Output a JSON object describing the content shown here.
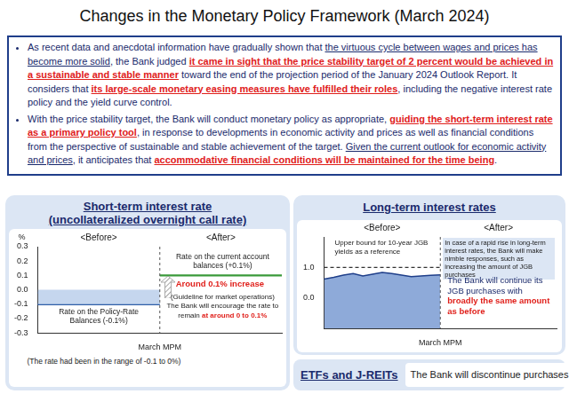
{
  "title": "Changes in the Monetary Policy Framework (March 2024)",
  "summary": {
    "bullets": [
      [
        {
          "text": "As recent data and anecdotal information have gradually shown that ",
          "style": "plain"
        },
        {
          "text": "the virtuous cycle between wages and prices has become more solid",
          "style": "underline"
        },
        {
          "text": ", the Bank judged ",
          "style": "plain"
        },
        {
          "text": "it came in sight that the price stability target of 2 percent would be achieved in a sustainable and stable manner",
          "style": "underline_red_bold"
        },
        {
          "text": " toward the end of the projection period of the January 2024 Outlook Report. It considers that ",
          "style": "plain"
        },
        {
          "text": "its large-scale monetary easing measures have fulfilled their roles",
          "style": "underline_red_bold"
        },
        {
          "text": ", including the negative interest rate policy and the yield curve control.",
          "style": "plain"
        }
      ],
      [
        {
          "text": "With the price stability target, the Bank will conduct monetary policy as appropriate, ",
          "style": "plain"
        },
        {
          "text": "guiding the short-term interest rate as a primary policy tool",
          "style": "underline_red_bold"
        },
        {
          "text": ", in response to developments in economic activity and prices as well as financial conditions from the perspective of sustainable and stable achievement of the target. ",
          "style": "plain"
        },
        {
          "text": "Given the current outlook for economic activity and prices",
          "style": "underline"
        },
        {
          "text": ", it anticipates that ",
          "style": "plain"
        },
        {
          "text": "accommodative financial conditions will be maintained for the time being",
          "style": "underline_red_bold"
        },
        {
          "text": ".",
          "style": "plain"
        }
      ]
    ]
  },
  "chart_data": [
    {
      "type": "line",
      "title": "Short-term interest rate",
      "subtitle": "(uncollateralized overnight call rate)",
      "ylabel": "%",
      "categories": [
        null,
        null,
        null,
        null,
        null,
        null,
        null,
        null,
        null,
        null,
        null,
        null,
        "March MPM",
        null,
        null,
        null,
        null,
        null,
        null,
        null,
        null,
        null,
        null,
        null,
        null
      ],
      "series": [
        {
          "type": "band",
          "color": "#c5d6ee",
          "low": [
            -0.1,
            -0.1,
            -0.1,
            -0.1,
            -0.1,
            -0.1,
            -0.1,
            -0.1,
            -0.1,
            -0.1,
            -0.1,
            -0.1,
            -0.1,
            null,
            null,
            null,
            null,
            null,
            null,
            null,
            null,
            null,
            null,
            null,
            null
          ],
          "high": [
            0,
            0,
            0,
            0,
            0,
            0,
            0,
            0,
            0,
            0,
            0,
            0,
            0,
            null,
            null,
            null,
            null,
            null,
            null,
            null,
            null,
            null,
            null,
            null,
            null
          ]
        },
        {
          "type": "line",
          "color": "#2f5fa8",
          "values": [
            -0.1,
            -0.1,
            -0.1,
            -0.1,
            -0.1,
            -0.1,
            -0.1,
            -0.1,
            -0.1,
            -0.1,
            -0.1,
            -0.1,
            -0.1,
            null,
            null,
            null,
            null,
            null,
            null,
            null,
            null,
            null,
            null,
            null,
            null
          ]
        },
        {
          "type": "line",
          "color": "#1f3864",
          "values": [
            -0.02,
            -0.02,
            -0.03,
            -0.02,
            -0.04,
            -0.06,
            -0.02,
            -0.02,
            -0.01,
            -0.02,
            -0.02,
            -0.01,
            -0.01,
            null,
            null,
            null,
            null,
            null,
            null,
            null,
            null,
            null,
            null,
            null,
            null
          ]
        },
        {
          "type": "line",
          "color": "#3a9a3a",
          "values": [
            null,
            null,
            null,
            null,
            null,
            null,
            null,
            null,
            null,
            null,
            null,
            null,
            0.1,
            0.1,
            0.1,
            0.1,
            0.1,
            0.1,
            0.1,
            0.1,
            0.1,
            0.1,
            0.1,
            0.1,
            0.1
          ]
        }
      ],
      "ylim": [
        -0.3,
        0.3
      ],
      "yticks": [
        0.3,
        0.2,
        0.1,
        {
          "value": 0,
          "label": "0.0"
        },
        -0.1,
        -0.2,
        -0.3
      ],
      "grid": false,
      "annotations": {
        "before": "<Before>",
        "after": "<After>",
        "current_account": "Rate on the current account balances (+0.1%)",
        "increase": [
          {
            "text": "Around 0.1% increase",
            "style": "red_bold"
          }
        ],
        "guideline": "(Guideline for market operations)",
        "encourage": [
          {
            "text": "The Bank will encourage the rate to remain ",
            "style": "plain"
          },
          {
            "text": "at around 0 to 0.1%",
            "style": "red_bold"
          }
        ],
        "policy_rate": "Rate on the Policy-Rate Balances (-0.1%)",
        "range_note": "(The rate had been in the range of -0.1 to 0%)"
      }
    },
    {
      "type": "line",
      "title": "Long-term interest rates",
      "categories": [
        null,
        null,
        null,
        null,
        null,
        null,
        null,
        null,
        null,
        null,
        null,
        null,
        "March MPM",
        null,
        null,
        null,
        null,
        null,
        null,
        null,
        null,
        null,
        null,
        null,
        null
      ],
      "series": [
        {
          "type": "area",
          "color": "#8eaad9",
          "values": [
            0.62,
            0.68,
            0.75,
            0.8,
            0.72,
            0.78,
            0.84,
            0.8,
            0.75,
            0.7,
            0.72,
            0.74,
            0.76,
            null,
            null,
            null,
            null,
            null,
            null,
            null,
            null,
            null,
            null,
            null,
            null
          ]
        },
        {
          "type": "line",
          "color": "#333333",
          "line_style": "dashed",
          "values": [
            1,
            1,
            1,
            1,
            1,
            1,
            1,
            1,
            1,
            1,
            1,
            1,
            1,
            null,
            null,
            null,
            null,
            null,
            null,
            null,
            null,
            null,
            null,
            null,
            null
          ]
        }
      ],
      "ylim": [
        -1,
        2
      ],
      "yticks": [
        {
          "value": 1,
          "label": "1.0"
        },
        {
          "value": 0,
          "label": "0.0"
        }
      ],
      "grid": false,
      "annotations": {
        "before": "<Before>",
        "after": "<After>",
        "upper_bound": "Upper bound for 10-year JGB yields as a reference",
        "rapid_rise": "In case of a rapid rise in long-term interest rates, the Bank will make nimble responses, such as increasing the amount of JGB purchases",
        "continue": [
          {
            "text": "The Bank will continue its JGB purchases with ",
            "style": "plain"
          },
          {
            "text": "broadly the same amount as before",
            "style": "red_bold"
          }
        ]
      }
    }
  ],
  "etf": {
    "heading": "ETFs and J-REITs",
    "text": "The Bank will discontinue purchases"
  }
}
